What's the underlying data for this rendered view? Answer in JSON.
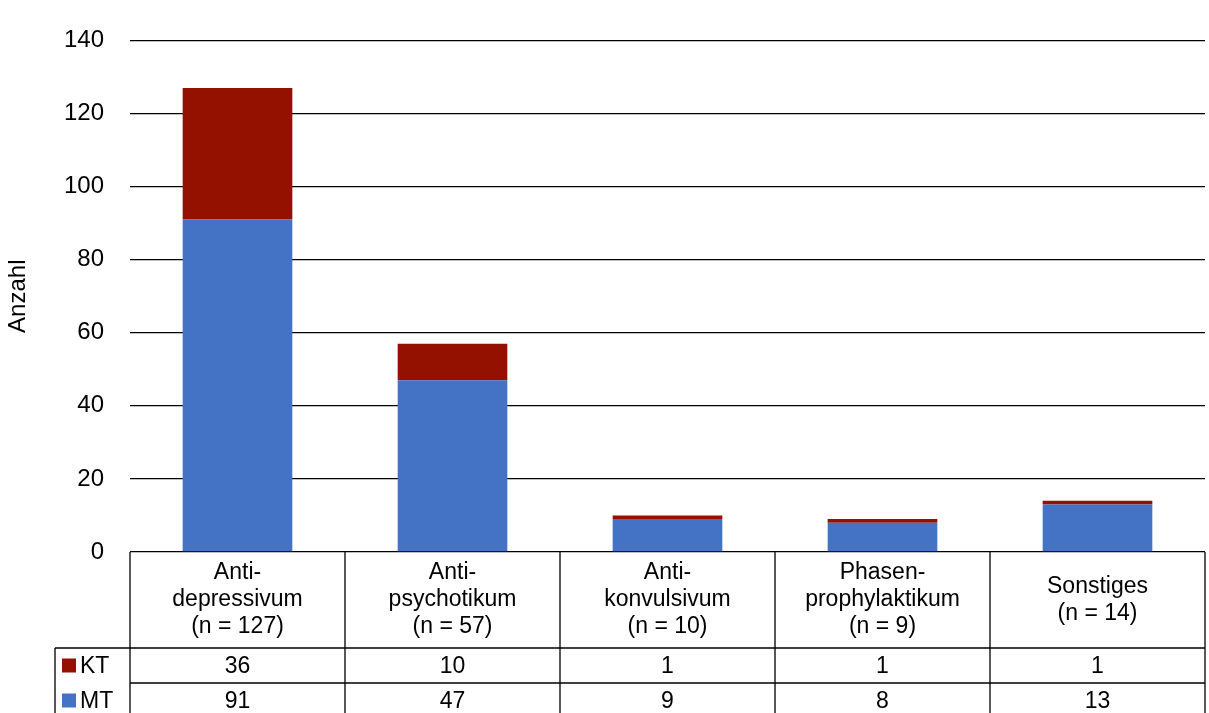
{
  "chart_data": {
    "type": "bar",
    "ylabel": "Anzahl",
    "categories": [
      "Anti-\ndepressivum\n(n = 127)",
      "Anti-\npsychotikum\n(n = 57)",
      "Anti-\nkonvulsivum\n(n = 10)",
      "Phasen-\nprophylaktikum\n(n = 9)",
      "Sonstiges\n(n = 14)"
    ],
    "series": [
      {
        "name": "MT",
        "color": "#4472c4",
        "values": [
          91,
          47,
          9,
          8,
          13
        ]
      },
      {
        "name": "KT",
        "color": "#941100",
        "values": [
          36,
          10,
          1,
          1,
          1
        ]
      }
    ],
    "stacked": true,
    "ylim": [
      0,
      140
    ],
    "yticks": [
      0,
      20,
      40,
      60,
      80,
      100,
      120,
      140
    ],
    "grid": "y",
    "legend": "bottom",
    "data_labels": true
  }
}
